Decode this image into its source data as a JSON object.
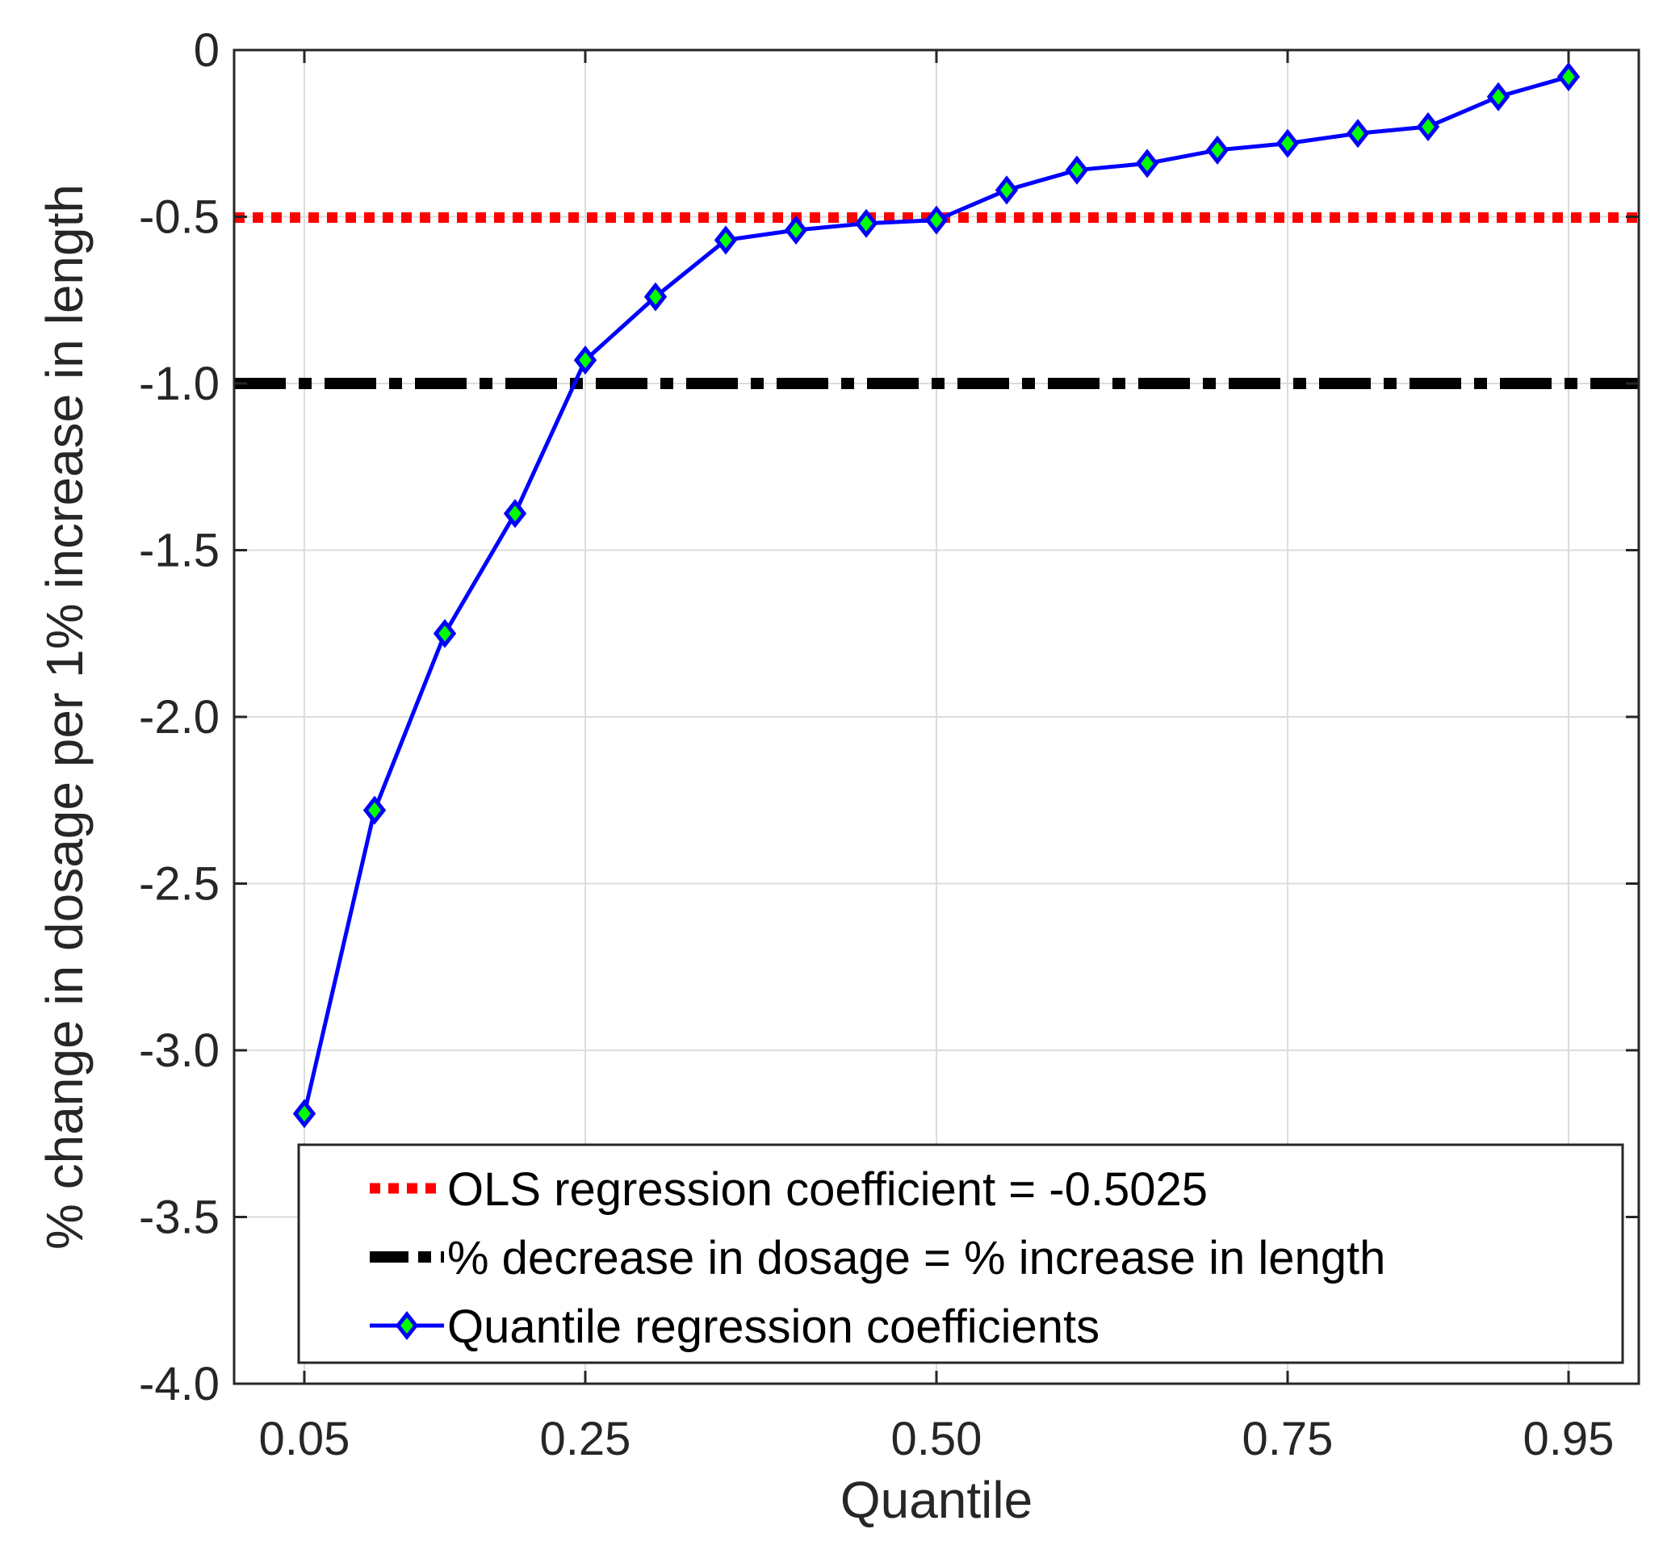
{
  "chart_data": {
    "type": "line",
    "title": "",
    "xlabel": "Quantile",
    "ylabel": "% change in dosage per 1% increase in length",
    "xlim": [
      0.0,
      1.0
    ],
    "ylim": [
      -4.0,
      0.0
    ],
    "x_ticks": [
      0.05,
      0.25,
      0.5,
      0.75,
      0.95
    ],
    "x_tick_labels": [
      "0.05",
      "0.25",
      "0.50",
      "0.75",
      "0.95"
    ],
    "x_grid": [
      0.05,
      0.25,
      0.5,
      0.75,
      0.95
    ],
    "y_ticks": [
      0,
      -0.5,
      -1.0,
      -1.5,
      -2.0,
      -2.5,
      -3.0,
      -3.5,
      -4.0
    ],
    "y_tick_labels": [
      "0",
      "-0.5",
      "-1.0",
      "-1.5",
      "-2.0",
      "-2.5",
      "-3.0",
      "-3.5",
      "-4.0"
    ],
    "grid": true,
    "legend_position": "bottom-right",
    "series": [
      {
        "name": "OLS regression coefficient = -0.5025",
        "style": "dotted",
        "color": "#ff0000",
        "y": -0.5025
      },
      {
        "name": "% decrease in dosage = % increase in length",
        "style": "dashed",
        "color": "#000000",
        "y": -1.0
      },
      {
        "name": "Quantile regression coefficients",
        "style": "line-marker",
        "color": "#0000ff",
        "marker_color": "#00ff00",
        "x": [
          0.05,
          0.1,
          0.15,
          0.2,
          0.25,
          0.3,
          0.35,
          0.4,
          0.45,
          0.5,
          0.55,
          0.6,
          0.65,
          0.7,
          0.75,
          0.8,
          0.85,
          0.9,
          0.95
        ],
        "y": [
          -3.19,
          -2.28,
          -1.75,
          -1.39,
          -0.93,
          -0.74,
          -0.57,
          -0.54,
          -0.52,
          -0.51,
          -0.42,
          -0.36,
          -0.34,
          -0.3,
          -0.28,
          -0.25,
          -0.23,
          -0.14,
          -0.08
        ]
      }
    ]
  }
}
